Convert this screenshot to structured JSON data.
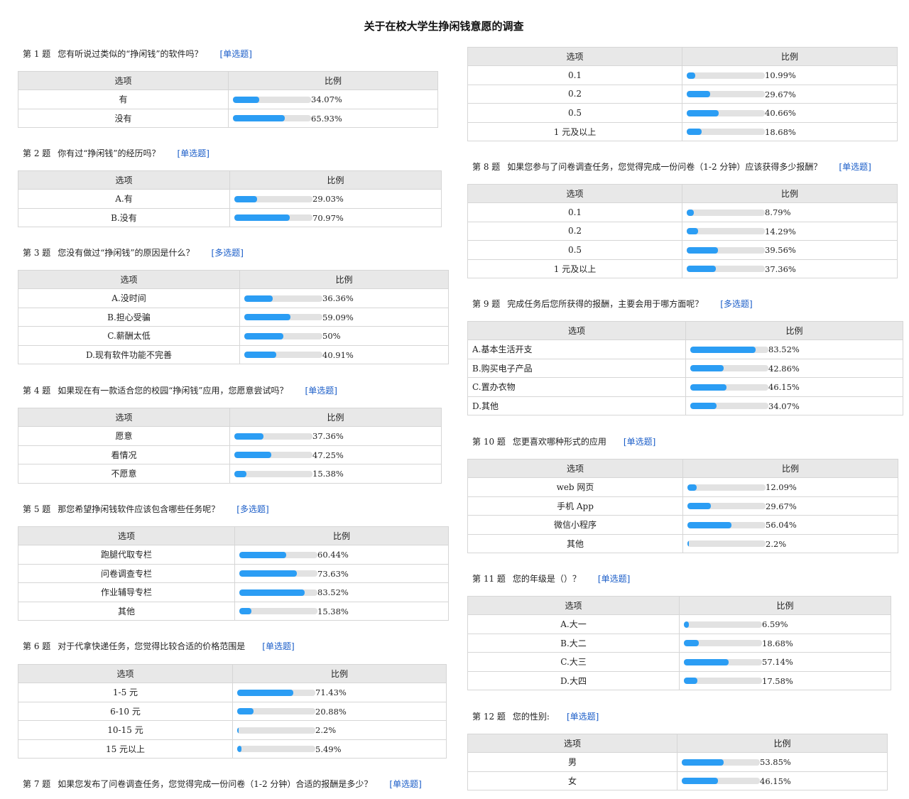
{
  "title": "关于在校大学生挣闲钱意愿的调查",
  "header_option": "选项",
  "header_ratio": "比例",
  "colors": {
    "bar_fill": "#2b9df4",
    "bar_track": "#e2e2e2",
    "type_link": "#1a5dc8",
    "header_bg": "#e8e8e8"
  },
  "questions": [
    {
      "num": "第 1 题",
      "text": "您有听说过类似的“挣闲钱”的软件吗？",
      "type": "[单选题]",
      "rows": [
        {
          "option": "有",
          "pct": "34.07%",
          "value": 34.07
        },
        {
          "option": "没有",
          "pct": "65.93%",
          "value": 65.93
        }
      ]
    },
    {
      "num": "第 2 题",
      "text": "你有过“挣闲钱”的经历吗？",
      "type": "[单选题]",
      "rows": [
        {
          "option": "A.有",
          "pct": "29.03%",
          "value": 29.03
        },
        {
          "option": "B.没有",
          "pct": "70.97%",
          "value": 70.97
        }
      ]
    },
    {
      "num": "第 3 题",
      "text": "您没有做过“挣闲钱”的原因是什么？",
      "type": "[多选题]",
      "rows": [
        {
          "option": "A.没时间",
          "pct": "36.36%",
          "value": 36.36
        },
        {
          "option": "B.担心受骗",
          "pct": "59.09%",
          "value": 59.09
        },
        {
          "option": "C.薪酬太低",
          "pct": "50%",
          "value": 50
        },
        {
          "option": "D.现有软件功能不完善",
          "pct": "40.91%",
          "value": 40.91
        }
      ]
    },
    {
      "num": "第 4 题",
      "text": "如果现在有一款适合您的校园“挣闲钱”应用，您愿意尝试吗？",
      "type": "[单选题]",
      "rows": [
        {
          "option": "愿意",
          "pct": "37.36%",
          "value": 37.36
        },
        {
          "option": "看情况",
          "pct": "47.25%",
          "value": 47.25
        },
        {
          "option": "不愿意",
          "pct": "15.38%",
          "value": 15.38
        }
      ]
    },
    {
      "num": "第 5 题",
      "text": "那您希望挣闲钱软件应该包含哪些任务呢？",
      "type": "[多选题]",
      "rows": [
        {
          "option": "跑腿代取专栏",
          "pct": "60.44%",
          "value": 60.44
        },
        {
          "option": "问卷调查专栏",
          "pct": "73.63%",
          "value": 73.63
        },
        {
          "option": "作业辅导专栏",
          "pct": "83.52%",
          "value": 83.52
        },
        {
          "option": "其他",
          "pct": "15.38%",
          "value": 15.38
        }
      ]
    },
    {
      "num": "第 6 题",
      "text": "对于代拿快递任务，您觉得比较合适的价格范围是",
      "type": "[单选题]",
      "rows": [
        {
          "option": "1-5 元",
          "pct": "71.43%",
          "value": 71.43
        },
        {
          "option": "6-10 元",
          "pct": "20.88%",
          "value": 20.88
        },
        {
          "option": "10-15 元",
          "pct": "2.2%",
          "value": 2.2
        },
        {
          "option": "15 元以上",
          "pct": "5.49%",
          "value": 5.49
        }
      ]
    },
    {
      "num": "第 7 题",
      "text": "如果您发布了问卷调查任务，您觉得完成一份问卷（1-2 分钟）合适的报酬是多少？",
      "type": "[单选题]",
      "rows": [
        {
          "option": "0.1",
          "pct": "10.99%",
          "value": 10.99
        },
        {
          "option": "0.2",
          "pct": "29.67%",
          "value": 29.67
        },
        {
          "option": "0.5",
          "pct": "40.66%",
          "value": 40.66
        },
        {
          "option": "1 元及以上",
          "pct": "18.68%",
          "value": 18.68
        }
      ]
    },
    {
      "num": "第 8 题",
      "text": "如果您参与了问卷调查任务，您觉得完成一份问卷（1-2 分钟）应该获得多少报酬？",
      "type": "[单选题]",
      "rows": [
        {
          "option": "0.1",
          "pct": "8.79%",
          "value": 8.79
        },
        {
          "option": "0.2",
          "pct": "14.29%",
          "value": 14.29
        },
        {
          "option": "0.5",
          "pct": "39.56%",
          "value": 39.56
        },
        {
          "option": "1 元及以上",
          "pct": "37.36%",
          "value": 37.36
        }
      ]
    },
    {
      "num": "第 9 题",
      "text": "完成任务后您所获得的报酬，主要会用于哪方面呢？",
      "type": "[多选题]",
      "rows": [
        {
          "option": "A.基本生活开支",
          "pct": "83.52%",
          "value": 83.52
        },
        {
          "option": "B.购买电子产品",
          "pct": "42.86%",
          "value": 42.86
        },
        {
          "option": "C.置办衣物",
          "pct": "46.15%",
          "value": 46.15
        },
        {
          "option": "D.其他",
          "pct": "34.07%",
          "value": 34.07
        }
      ]
    },
    {
      "num": "第 10 题",
      "text": "您更喜欢哪种形式的应用",
      "type": "[单选题]",
      "rows": [
        {
          "option": "web 网页",
          "pct": "12.09%",
          "value": 12.09
        },
        {
          "option": "手机 App",
          "pct": "29.67%",
          "value": 29.67
        },
        {
          "option": "微信小程序",
          "pct": "56.04%",
          "value": 56.04
        },
        {
          "option": "其他",
          "pct": "2.2%",
          "value": 2.2
        }
      ]
    },
    {
      "num": "第 11 题",
      "text": "您的年级是（）？",
      "type": "[单选题]",
      "rows": [
        {
          "option": "A.大一",
          "pct": "6.59%",
          "value": 6.59
        },
        {
          "option": "B.大二",
          "pct": "18.68%",
          "value": 18.68
        },
        {
          "option": "C.大三",
          "pct": "57.14%",
          "value": 57.14
        },
        {
          "option": "D.大四",
          "pct": "17.58%",
          "value": 17.58
        }
      ]
    },
    {
      "num": "第 12 题",
      "text": "您的性别:",
      "type": "[单选题]",
      "rows": [
        {
          "option": "男",
          "pct": "53.85%",
          "value": 53.85
        },
        {
          "option": "女",
          "pct": "46.15%",
          "value": 46.15
        }
      ]
    }
  ]
}
